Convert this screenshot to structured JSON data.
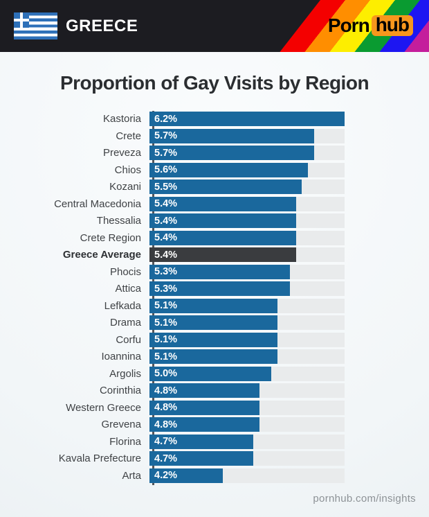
{
  "header": {
    "country": "GREECE",
    "flag": "flag-of-greece",
    "logo": {
      "part1": "Porn",
      "part2": "hub"
    }
  },
  "title": "Proportion of Gay Visits by Region",
  "footer": "pornhub.com/insights",
  "chart_data": {
    "type": "bar",
    "orientation": "horizontal",
    "title": "Proportion of Gay Visits by Region",
    "unit": "%",
    "axis_min": 3.0,
    "axis_max": 6.2,
    "grid": false,
    "legend": false,
    "highlight_category": "Greece Average",
    "categories": [
      "Kastoria",
      "Crete",
      "Preveza",
      "Chios",
      "Kozani",
      "Central Macedonia",
      "Thessalia",
      "Crete Region",
      "Greece Average",
      "Phocis",
      "Attica",
      "Lefkada",
      "Drama",
      "Corfu",
      "Ioannina",
      "Argolis",
      "Corinthia",
      "Western Greece",
      "Grevena",
      "Florina",
      "Kavala Prefecture",
      "Arta"
    ],
    "values": [
      6.2,
      5.7,
      5.7,
      5.6,
      5.5,
      5.4,
      5.4,
      5.4,
      5.4,
      5.3,
      5.3,
      5.1,
      5.1,
      5.1,
      5.1,
      5.0,
      4.8,
      4.8,
      4.8,
      4.7,
      4.7,
      4.2
    ],
    "value_labels": [
      "6.2%",
      "5.7%",
      "5.7%",
      "5.6%",
      "5.5%",
      "5.4%",
      "5.4%",
      "5.4%",
      "5.4%",
      "5.3%",
      "5.3%",
      "5.1%",
      "5.1%",
      "5.1%",
      "5.1%",
      "5.0%",
      "4.8%",
      "4.8%",
      "4.8%",
      "4.7%",
      "4.7%",
      "4.2%"
    ]
  },
  "colors": {
    "bar_blue": "#1a689d",
    "highlight_bar": "#3a3c3f",
    "track": "#e9ebec",
    "axis_line": "#54565a",
    "header_bg": "#1c1c21",
    "flag_blue": "#2e70b8",
    "hub_badge_orange": "#f7971d",
    "rainbow": [
      "#f40000",
      "#ff8e00",
      "#fdee00",
      "#0a9b31",
      "#1d16f2",
      "#c41e9c"
    ]
  }
}
